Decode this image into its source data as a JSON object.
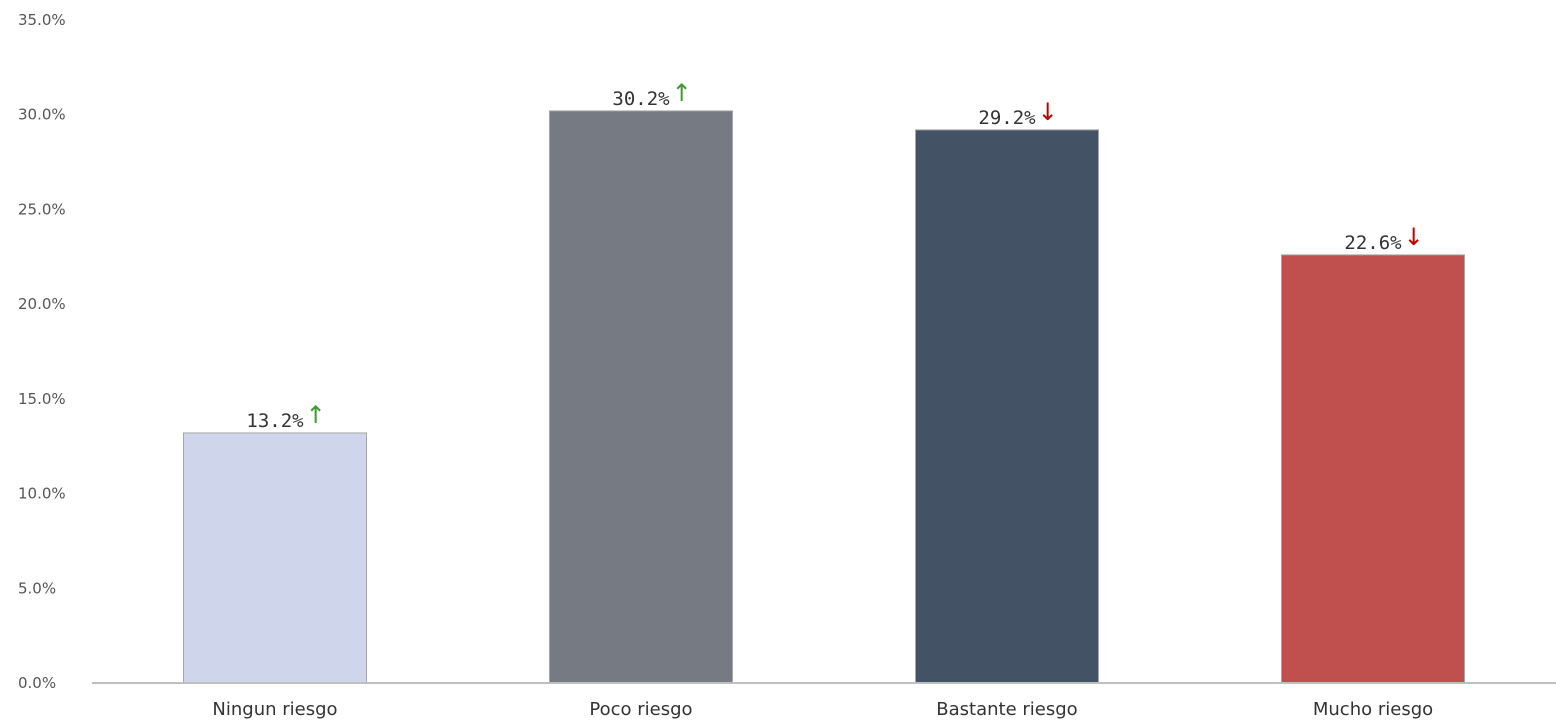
{
  "chart_data": {
    "type": "bar",
    "title": "",
    "xlabel": "",
    "ylabel": "",
    "categories": [
      "Ningun riesgo",
      "Poco riesgo",
      "Bastante riesgo",
      "Mucho riesgo"
    ],
    "values": [
      13.2,
      30.2,
      29.2,
      22.6
    ],
    "value_labels": [
      "13.2%",
      "30.2%",
      "29.2%",
      "22.6%"
    ],
    "trends": [
      "up",
      "up",
      "down",
      "down"
    ],
    "trend_symbols": {
      "up": "↑",
      "down": "↓"
    },
    "trend_colors": {
      "up": "#3c9a2e",
      "down": "#c00000"
    },
    "bar_colors": [
      "#cfd5ea",
      "#767a82",
      "#435365",
      "#c0504d"
    ],
    "ylim": [
      0,
      35
    ],
    "y_ticks": [
      0,
      5,
      10,
      15,
      20,
      25,
      30,
      35
    ],
    "y_tick_labels": [
      "0.0%",
      "5.0%",
      "10.0%",
      "15.0%",
      "20.0%",
      "25.0%",
      "30.0%",
      "35.0%"
    ],
    "grid": false,
    "legend": "none"
  }
}
